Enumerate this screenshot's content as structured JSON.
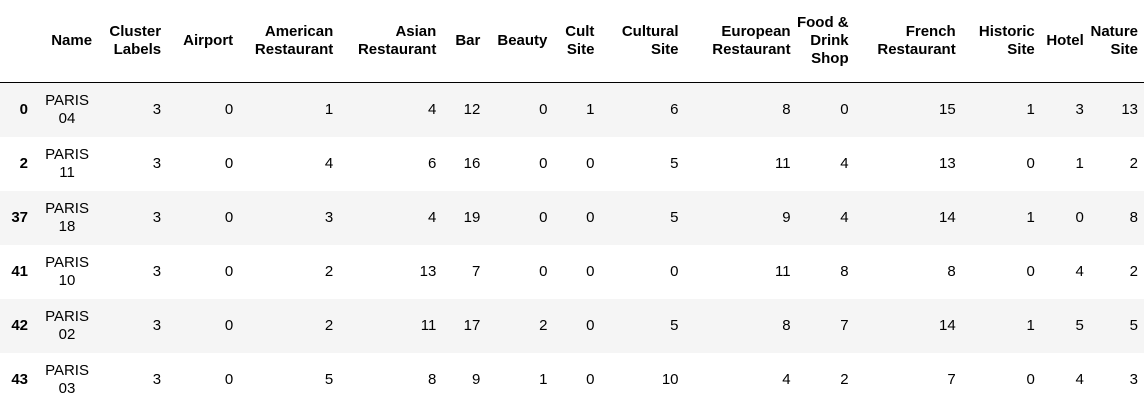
{
  "table": {
    "columns": [
      "",
      "Name",
      "Cluster Labels",
      "Airport",
      "American Restaurant",
      "Asian Restaurant",
      "Bar",
      "Beauty",
      "Cult Site",
      "Cultural Site",
      "European Restaurant",
      "Food & Drink Shop",
      "French Restaurant",
      "Historic Site",
      "Hotel",
      "Nature Site"
    ],
    "rows": [
      {
        "index": "0",
        "name": "PARIS 04",
        "cells": [
          "3",
          "0",
          "1",
          "4",
          "12",
          "0",
          "1",
          "6",
          "8",
          "0",
          "15",
          "1",
          "3",
          "13"
        ]
      },
      {
        "index": "2",
        "name": "PARIS 11",
        "cells": [
          "3",
          "0",
          "4",
          "6",
          "16",
          "0",
          "0",
          "5",
          "11",
          "4",
          "13",
          "0",
          "1",
          "2"
        ]
      },
      {
        "index": "37",
        "name": "PARIS 18",
        "cells": [
          "3",
          "0",
          "3",
          "4",
          "19",
          "0",
          "0",
          "5",
          "9",
          "4",
          "14",
          "1",
          "0",
          "8"
        ]
      },
      {
        "index": "41",
        "name": "PARIS 10",
        "cells": [
          "3",
          "0",
          "2",
          "13",
          "7",
          "0",
          "0",
          "0",
          "11",
          "8",
          "8",
          "0",
          "4",
          "2"
        ]
      },
      {
        "index": "42",
        "name": "PARIS 02",
        "cells": [
          "3",
          "0",
          "2",
          "11",
          "17",
          "2",
          "0",
          "5",
          "8",
          "7",
          "14",
          "1",
          "5",
          "5"
        ]
      },
      {
        "index": "43",
        "name": "PARIS 03",
        "cells": [
          "3",
          "0",
          "5",
          "8",
          "9",
          "1",
          "0",
          "10",
          "4",
          "2",
          "7",
          "0",
          "4",
          "3"
        ]
      }
    ]
  }
}
